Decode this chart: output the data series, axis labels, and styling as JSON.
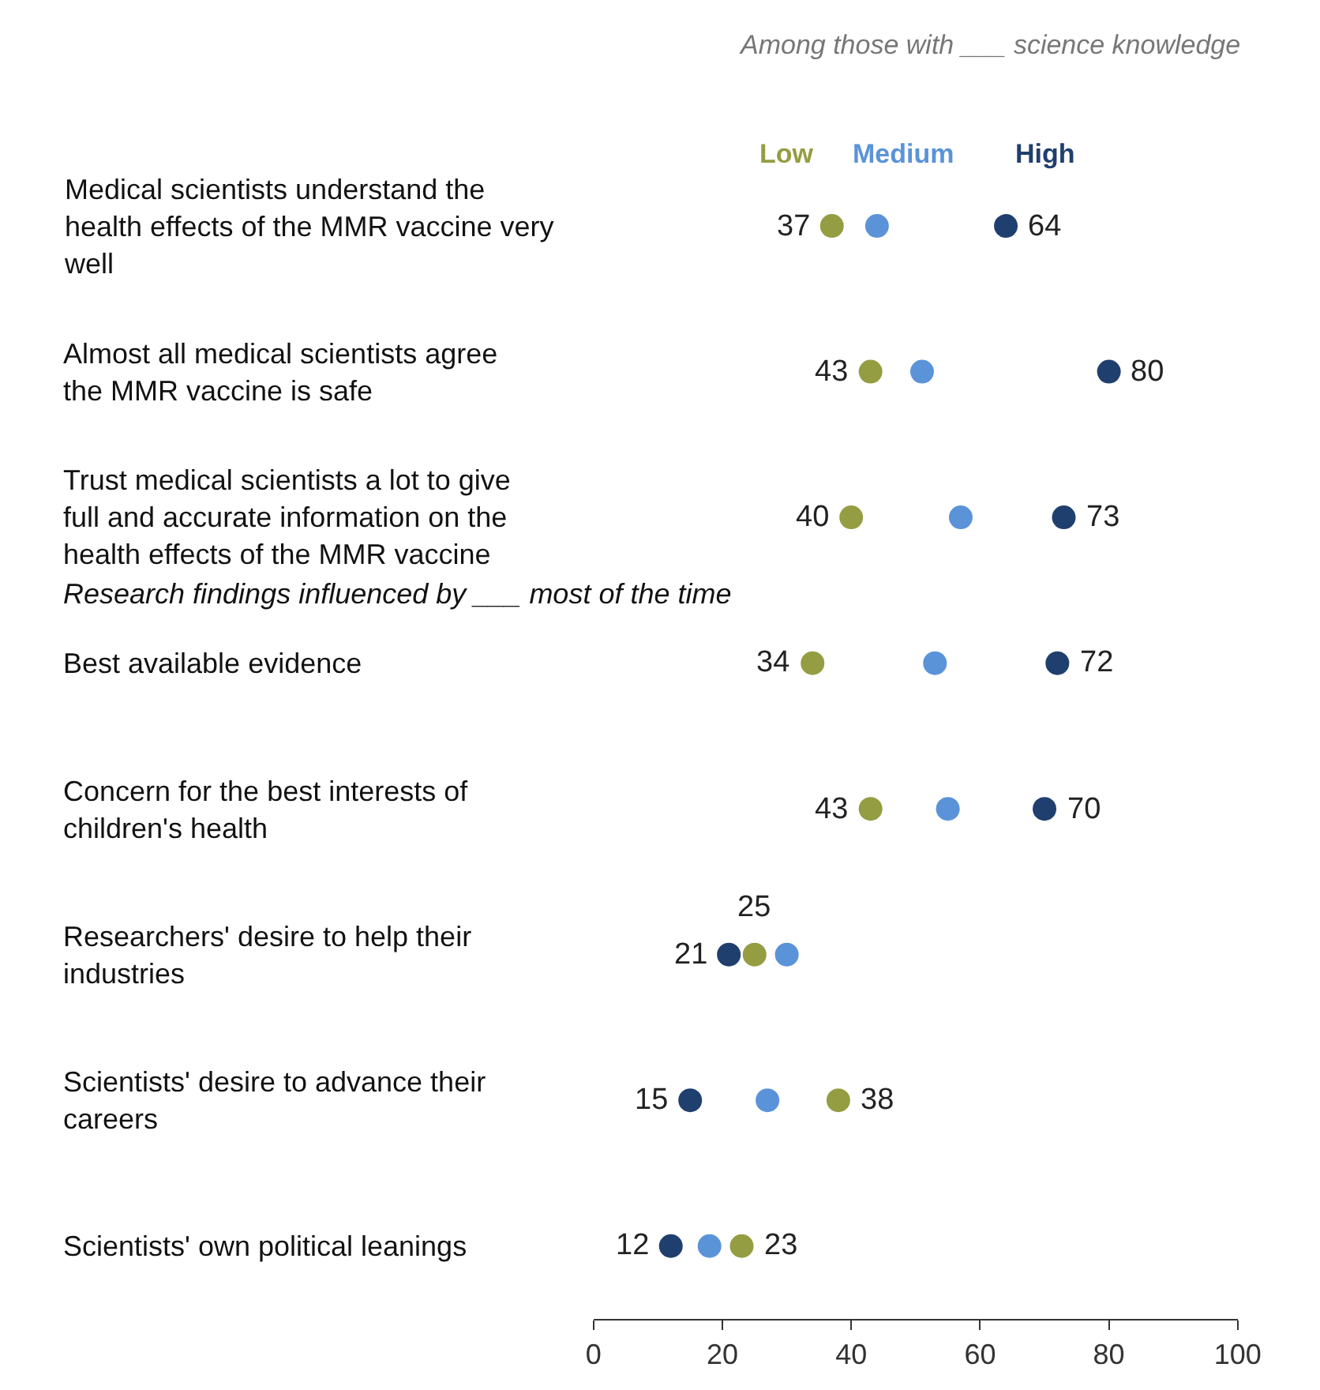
{
  "chart_data": {
    "type": "scatter",
    "orientation": "horizontal",
    "subtitle": "Among those with ___ science knowledge",
    "categories": [
      "Medical scientists understand the health effects of the MMR vaccine very well",
      "Almost all medical scientists agree the MMR vaccine is safe",
      "Trust medical scientists a lot to give full and accurate information on the health effects of the MMR vaccine",
      "Best available evidence",
      "Concern for the best interests of children's health",
      "Researchers' desire to help their industries",
      "Scientists' desire to advance their careers",
      "Scientists' own political leanings"
    ],
    "series": [
      {
        "name": "Low",
        "color": "#959d42",
        "values": [
          37,
          43,
          40,
          34,
          43,
          25,
          38,
          23
        ],
        "value_labels": [
          "37",
          "43",
          "40",
          "34",
          "43",
          "25",
          "38",
          "23"
        ]
      },
      {
        "name": "Medium",
        "color": "#5b93d9",
        "values": [
          44,
          51,
          57,
          53,
          55,
          30,
          27,
          18
        ],
        "value_labels": [
          null,
          null,
          null,
          null,
          null,
          null,
          null,
          null
        ]
      },
      {
        "name": "High",
        "color": "#1f3f6e",
        "values": [
          64,
          80,
          73,
          72,
          70,
          21,
          15,
          12
        ],
        "value_labels": [
          "64",
          "80",
          "73",
          "72",
          "70",
          "21",
          "15",
          "12"
        ]
      }
    ],
    "annotations": [
      "Research findings influenced by ___ most of the time"
    ],
    "xlim": [
      0,
      100
    ],
    "xticks": [
      0,
      20,
      40,
      60,
      80,
      100
    ],
    "legend": false,
    "marker": "circle",
    "tick_labels": "x"
  }
}
